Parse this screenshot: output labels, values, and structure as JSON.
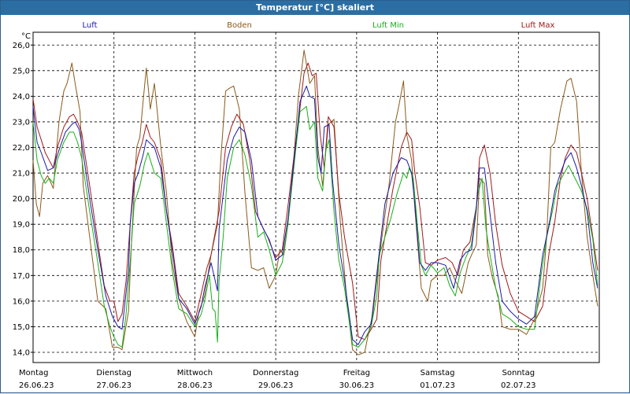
{
  "window": {
    "title": "Temperatur [°C] skaliert"
  },
  "colors": {
    "Luft": "#1a1aa8",
    "Boden": "#8b5a1a",
    "Luft Min": "#18b018",
    "Luft Max": "#a01a1a"
  },
  "chart_data": {
    "type": "line",
    "title": "Temperatur [°C] skaliert",
    "ylabel": "°C",
    "ylim": [
      13.6,
      26.5
    ],
    "yticks": [
      "26,0",
      "25,0",
      "24,0",
      "23,0",
      "22,0",
      "21,0",
      "20,0",
      "19,0",
      "18,0",
      "17,0",
      "16,0",
      "15,0",
      "14,0"
    ],
    "ytick_values": [
      26,
      25,
      24,
      23,
      22,
      21,
      20,
      19,
      18,
      17,
      16,
      15,
      14
    ],
    "xlim": [
      0,
      7
    ],
    "x_days": [
      {
        "day": "Montag",
        "date": "26.06.23"
      },
      {
        "day": "Dienstag",
        "date": "27.06.23"
      },
      {
        "day": "Mittwoch",
        "date": "28.06.23"
      },
      {
        "day": "Donnerstag",
        "date": "29.06.23"
      },
      {
        "day": "Freitag",
        "date": "30.06.23"
      },
      {
        "day": "Samstag",
        "date": "01.07.23"
      },
      {
        "day": "Sonntag",
        "date": "02.07.23"
      }
    ],
    "grid": true,
    "legend_position": "top",
    "series": [
      {
        "name": "Luft",
        "x": [
          0,
          0.05,
          0.1,
          0.18,
          0.25,
          0.32,
          0.4,
          0.48,
          0.52,
          0.57,
          0.6,
          0.7,
          0.8,
          0.9,
          0.98,
          1.05,
          1.1,
          1.18,
          1.2,
          1.25,
          1.3,
          1.36,
          1.4,
          1.5,
          1.58,
          1.65,
          1.72,
          1.8,
          1.9,
          2.0,
          2.08,
          2.12,
          2.2,
          2.28,
          2.3,
          2.4,
          2.48,
          2.55,
          2.62,
          2.7,
          2.78,
          2.85,
          2.92,
          3.0,
          3.08,
          3.15,
          3.25,
          3.3,
          3.38,
          3.42,
          3.48,
          3.52,
          3.56,
          3.6,
          3.66,
          3.7,
          3.78,
          3.85,
          3.95,
          4.02,
          4.1,
          4.18,
          4.28,
          4.35,
          4.45,
          4.55,
          4.62,
          4.68,
          4.72,
          4.78,
          4.85,
          4.92,
          5.0,
          5.1,
          5.2,
          5.28,
          5.35,
          5.42,
          5.48,
          5.52,
          5.58,
          5.65,
          5.72,
          5.8,
          5.9,
          6.0,
          6.1,
          6.2,
          6.3,
          6.38,
          6.45,
          6.52,
          6.58,
          6.65,
          6.72,
          6.78,
          6.85,
          6.92,
          6.98
        ],
        "values": [
          23.6,
          22.2,
          21.8,
          21.1,
          21.2,
          21.9,
          22.6,
          22.9,
          23.0,
          22.7,
          22.2,
          20.0,
          18.0,
          16.2,
          15.4,
          15.0,
          14.9,
          17.2,
          19.0,
          20.6,
          21.0,
          21.7,
          22.3,
          22.0,
          21.2,
          19.5,
          18.0,
          16.1,
          15.7,
          15.1,
          15.8,
          16.5,
          17.5,
          16.4,
          18.8,
          21.5,
          22.4,
          22.8,
          22.6,
          21.5,
          19.3,
          18.8,
          18.4,
          17.6,
          17.8,
          19.2,
          22.2,
          23.8,
          24.4,
          24.0,
          23.9,
          21.6,
          21.0,
          22.8,
          22.9,
          20.8,
          18.2,
          16.8,
          14.5,
          14.3,
          14.8,
          15.1,
          17.9,
          19.8,
          21.0,
          21.6,
          21.5,
          21.0,
          19.8,
          17.5,
          17.2,
          17.5,
          17.5,
          17.4,
          16.5,
          17.6,
          17.9,
          18.0,
          19.6,
          21.2,
          21.2,
          19.4,
          17.5,
          16.0,
          15.6,
          15.3,
          15.1,
          15.4,
          17.8,
          19.0,
          20.3,
          21.0,
          21.5,
          21.8,
          21.2,
          20.5,
          19.5,
          17.5,
          16.5
        ]
      },
      {
        "name": "Boden",
        "x": [
          0,
          0.04,
          0.08,
          0.12,
          0.18,
          0.25,
          0.32,
          0.38,
          0.42,
          0.48,
          0.52,
          0.58,
          0.62,
          0.7,
          0.8,
          0.9,
          0.98,
          1.05,
          1.1,
          1.18,
          1.22,
          1.28,
          1.32,
          1.36,
          1.4,
          1.45,
          1.5,
          1.58,
          1.65,
          1.72,
          1.8,
          1.9,
          2.0,
          2.05,
          2.12,
          2.2,
          2.28,
          2.32,
          2.38,
          2.42,
          2.48,
          2.55,
          2.62,
          2.7,
          2.78,
          2.85,
          2.92,
          3.0,
          3.05,
          3.1,
          3.15,
          3.22,
          3.28,
          3.35,
          3.42,
          3.48,
          3.52,
          3.58,
          3.65,
          3.72,
          3.8,
          3.88,
          3.95,
          4.02,
          4.1,
          4.15,
          4.2,
          4.3,
          4.4,
          4.48,
          4.52,
          4.58,
          4.62,
          4.68,
          4.72,
          4.8,
          4.88,
          4.92,
          5.0,
          5.08,
          5.15,
          5.22,
          5.3,
          5.38,
          5.42,
          5.48,
          5.52,
          5.58,
          5.62,
          5.68,
          5.75,
          5.8,
          5.9,
          6.0,
          6.1,
          6.2,
          6.3,
          6.35,
          6.4,
          6.45,
          6.52,
          6.6,
          6.65,
          6.72,
          6.78,
          6.85,
          6.92,
          6.98
        ],
        "values": [
          21.5,
          19.8,
          19.3,
          20.6,
          20.9,
          20.4,
          23.0,
          24.2,
          24.5,
          25.3,
          24.5,
          23.4,
          20.5,
          18.5,
          16.0,
          15.7,
          14.2,
          14.2,
          14.1,
          15.6,
          18.5,
          22.0,
          22.4,
          23.8,
          25.1,
          23.5,
          24.5,
          22.0,
          20.2,
          17.5,
          16.1,
          15.2,
          14.6,
          15.6,
          16.2,
          17.8,
          19.0,
          21.5,
          24.2,
          24.3,
          24.4,
          23.5,
          20.2,
          17.3,
          17.2,
          17.3,
          16.5,
          17.0,
          18.0,
          17.8,
          19.0,
          21.4,
          24.0,
          25.8,
          24.5,
          24.8,
          22.0,
          20.5,
          22.9,
          23.1,
          19.0,
          16.0,
          14.1,
          13.9,
          14.0,
          14.8,
          15.5,
          18.2,
          20.5,
          23.0,
          23.6,
          24.6,
          22.5,
          21.5,
          19.6,
          16.5,
          16.0,
          16.8,
          17.0,
          17.0,
          17.3,
          16.8,
          16.3,
          17.5,
          17.8,
          18.2,
          20.8,
          20.6,
          17.8,
          16.9,
          16.2,
          15.0,
          14.9,
          14.9,
          14.7,
          15.3,
          16.5,
          18.5,
          22.0,
          22.2,
          23.5,
          24.6,
          24.7,
          23.8,
          21.0,
          18.5,
          17.0,
          15.8
        ]
      },
      {
        "name": "Luft Min",
        "x": [
          0,
          0.05,
          0.1,
          0.15,
          0.2,
          0.25,
          0.3,
          0.38,
          0.45,
          0.5,
          0.55,
          0.6,
          0.7,
          0.8,
          0.88,
          0.95,
          1.0,
          1.05,
          1.1,
          1.15,
          1.2,
          1.25,
          1.32,
          1.38,
          1.42,
          1.5,
          1.58,
          1.65,
          1.72,
          1.8,
          1.9,
          2.0,
          2.08,
          2.12,
          2.18,
          2.22,
          2.25,
          2.28,
          2.3,
          2.35,
          2.4,
          2.48,
          2.55,
          2.62,
          2.7,
          2.78,
          2.85,
          2.92,
          3.0,
          3.08,
          3.15,
          3.25,
          3.3,
          3.38,
          3.42,
          3.48,
          3.52,
          3.58,
          3.62,
          3.66,
          3.72,
          3.78,
          3.85,
          3.95,
          4.02,
          4.1,
          4.18,
          4.25,
          4.28,
          4.35,
          4.42,
          4.5,
          4.58,
          4.62,
          4.65,
          4.7,
          4.75,
          4.8,
          4.85,
          4.92,
          5.0,
          5.08,
          5.15,
          5.22,
          5.28,
          5.35,
          5.42,
          5.5,
          5.55,
          5.6,
          5.65,
          5.72,
          5.8,
          5.9,
          6.0,
          6.1,
          6.2,
          6.28,
          6.35,
          6.42,
          6.48,
          6.55,
          6.62,
          6.7,
          6.78,
          6.85,
          6.92,
          6.98
        ],
        "values": [
          23.0,
          21.5,
          20.9,
          20.6,
          20.8,
          20.6,
          21.5,
          22.2,
          22.6,
          22.6,
          22.2,
          21.6,
          19.5,
          17.5,
          15.8,
          15.0,
          14.6,
          14.3,
          14.2,
          15.5,
          17.5,
          19.8,
          20.5,
          21.4,
          21.8,
          21.0,
          20.8,
          19.0,
          17.2,
          15.7,
          15.5,
          15.0,
          15.5,
          16.0,
          17.0,
          15.7,
          15.6,
          14.4,
          16.8,
          18.5,
          20.8,
          22.0,
          22.3,
          21.7,
          20.5,
          18.5,
          18.7,
          18.0,
          17.0,
          17.5,
          19.0,
          22.0,
          23.4,
          23.6,
          22.7,
          23.0,
          20.8,
          20.3,
          21.9,
          22.3,
          19.5,
          17.6,
          16.5,
          14.3,
          14.2,
          14.5,
          15.0,
          16.2,
          17.8,
          18.5,
          19.2,
          20.2,
          21.0,
          20.8,
          21.2,
          20.8,
          19.0,
          17.4,
          17.0,
          17.4,
          17.1,
          17.3,
          16.6,
          16.2,
          17.1,
          17.7,
          18.2,
          20.2,
          20.8,
          18.8,
          17.8,
          16.5,
          15.5,
          15.3,
          15.0,
          14.9,
          14.9,
          17.0,
          18.5,
          19.5,
          20.5,
          20.9,
          21.3,
          20.8,
          20.3,
          19.6,
          18.4,
          16.6
        ]
      },
      {
        "name": "Luft Max",
        "x": [
          0,
          0.05,
          0.1,
          0.15,
          0.2,
          0.25,
          0.3,
          0.38,
          0.45,
          0.5,
          0.55,
          0.6,
          0.7,
          0.8,
          0.88,
          0.95,
          1.0,
          1.05,
          1.1,
          1.15,
          1.2,
          1.25,
          1.3,
          1.35,
          1.4,
          1.45,
          1.5,
          1.58,
          1.65,
          1.72,
          1.8,
          1.9,
          2.0,
          2.08,
          2.15,
          2.2,
          2.3,
          2.38,
          2.45,
          2.52,
          2.6,
          2.68,
          2.75,
          2.82,
          2.9,
          3.0,
          3.08,
          3.15,
          3.22,
          3.28,
          3.35,
          3.4,
          3.45,
          3.5,
          3.55,
          3.6,
          3.65,
          3.72,
          3.78,
          3.85,
          3.95,
          4.02,
          4.1,
          4.18,
          4.25,
          4.3,
          4.38,
          4.45,
          4.55,
          4.62,
          4.68,
          4.72,
          4.78,
          4.85,
          4.92,
          5.0,
          5.1,
          5.18,
          5.25,
          5.32,
          5.4,
          5.48,
          5.52,
          5.58,
          5.65,
          5.72,
          5.8,
          5.9,
          6.0,
          6.1,
          6.2,
          6.3,
          6.38,
          6.45,
          6.52,
          6.58,
          6.65,
          6.72,
          6.78,
          6.85,
          6.92,
          6.98
        ],
        "values": [
          23.9,
          22.8,
          22.3,
          21.8,
          21.5,
          21.2,
          22.0,
          22.8,
          23.2,
          23.3,
          23.0,
          22.6,
          20.5,
          18.3,
          16.6,
          16.0,
          16.0,
          15.2,
          15.5,
          16.8,
          19.0,
          21.0,
          21.7,
          22.2,
          22.9,
          22.4,
          22.2,
          21.5,
          19.5,
          18.2,
          16.3,
          15.8,
          15.2,
          16.3,
          17.3,
          17.8,
          19.5,
          22.0,
          22.8,
          23.3,
          22.9,
          21.5,
          19.5,
          19.0,
          18.5,
          17.7,
          18.0,
          19.7,
          21.5,
          23.0,
          24.9,
          25.3,
          24.8,
          24.9,
          22.5,
          21.2,
          23.2,
          22.8,
          20.2,
          18.5,
          16.7,
          14.6,
          14.5,
          14.9,
          15.3,
          17.6,
          19.1,
          20.4,
          22.0,
          22.6,
          22.3,
          21.0,
          19.7,
          17.5,
          17.4,
          17.6,
          17.7,
          17.5,
          17.0,
          18.0,
          18.3,
          19.7,
          21.6,
          22.1,
          21.0,
          19.0,
          17.4,
          16.3,
          15.6,
          15.4,
          15.2,
          15.8,
          17.9,
          19.1,
          20.8,
          21.6,
          22.1,
          21.8,
          21.0,
          20.0,
          18.5,
          17.2
        ]
      }
    ]
  }
}
